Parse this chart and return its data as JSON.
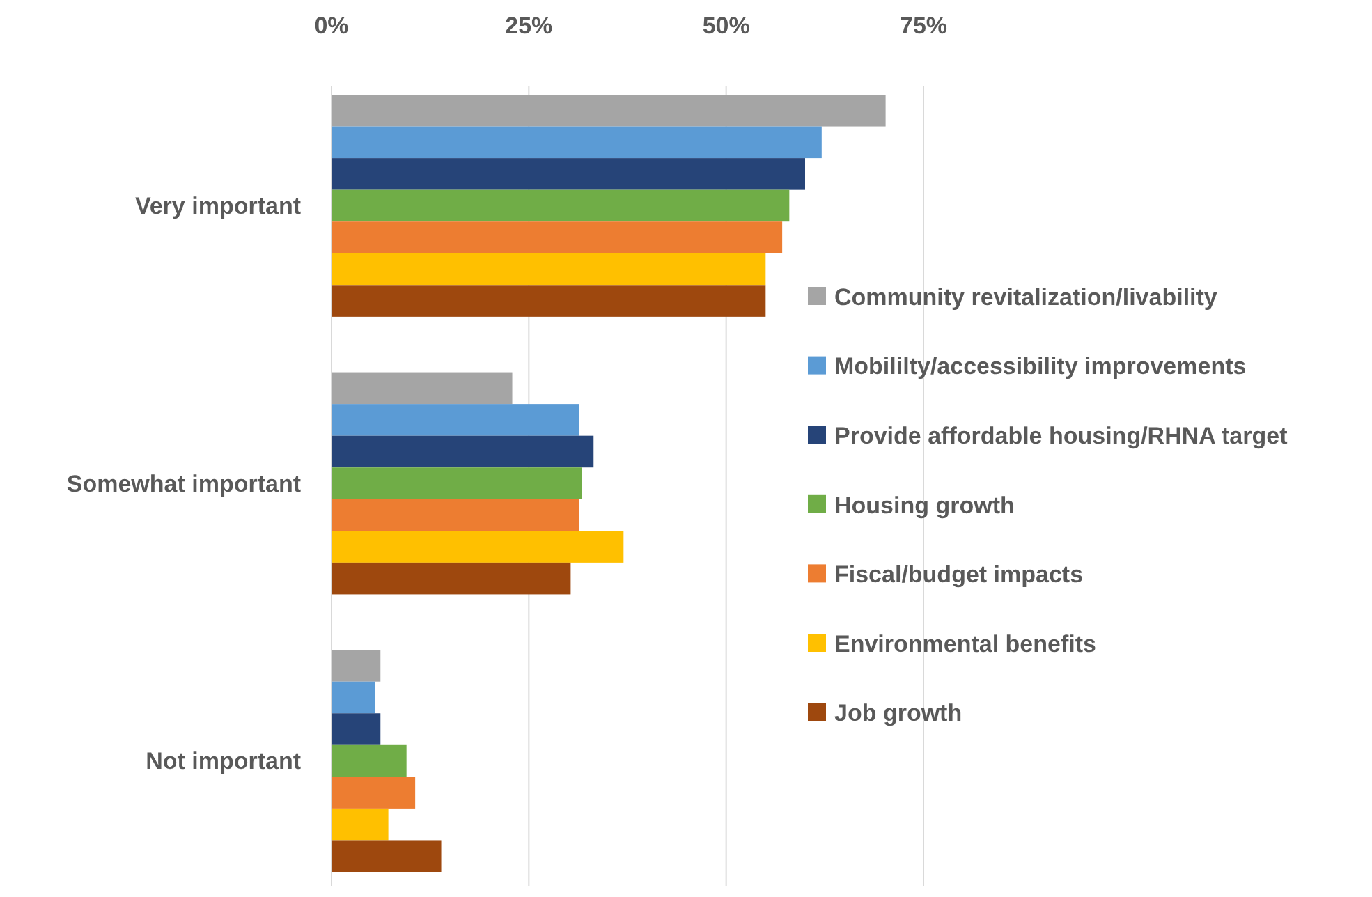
{
  "chart_data": {
    "type": "bar",
    "orientation": "horizontal",
    "categories": [
      "Very important",
      "Somewhat important",
      "Not important"
    ],
    "series": [
      {
        "name": "Community revitalization/livability",
        "color": "#a5a5a5",
        "values": [
          70.2,
          22.9,
          6.2
        ]
      },
      {
        "name": "Mobililty/accessibility improvements",
        "color": "#5b9bd5",
        "values": [
          62.1,
          31.4,
          5.5
        ]
      },
      {
        "name": "Provide affordable housing/RHNA target",
        "color": "#264478",
        "values": [
          60,
          33.2,
          6.2
        ]
      },
      {
        "name": "Housing growth",
        "color": "#70ad47",
        "values": [
          58,
          31.7,
          9.5
        ]
      },
      {
        "name": "Fiscal/budget impacts",
        "color": "#ed7d31",
        "values": [
          57.1,
          31.4,
          10.6
        ]
      },
      {
        "name": "Environmental benefits",
        "color": "#ffc000",
        "values": [
          55,
          37,
          7.2
        ]
      },
      {
        "name": "Job growth",
        "color": "#9e480e",
        "values": [
          55,
          30.3,
          13.9
        ]
      }
    ],
    "xlim": [
      0,
      75
    ],
    "xticks": [
      {
        "value": 0,
        "label": "0%"
      },
      {
        "value": 25,
        "label": "25%"
      },
      {
        "value": 50,
        "label": "50%"
      },
      {
        "value": 75,
        "label": "75%"
      }
    ],
    "grid": true,
    "legend": "right"
  }
}
